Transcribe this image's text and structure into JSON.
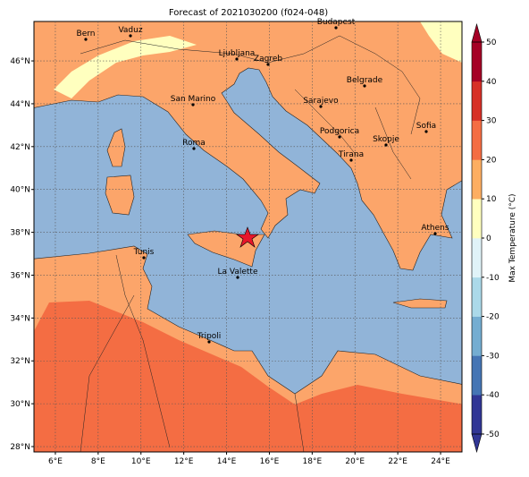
{
  "title": "Forecast of 2021030200 (f024-048)",
  "cities": [
    "Bern",
    "Vaduz",
    "Budapest",
    "Ljubljana",
    "Zagreb",
    "Belgrade",
    "Sarajevo",
    "San Marino",
    "Sofia",
    "Roma",
    "Podgorica",
    "Skopje",
    "Tirana",
    "Athens",
    "Tunis",
    "La Valette",
    "Tripoli"
  ],
  "lon_lim": [
    5,
    25
  ],
  "lat_lim": [
    27.75,
    47.84
  ],
  "lon_ticks": [
    {
      "value": 6,
      "label": "6°E"
    },
    {
      "value": 8,
      "label": "8°E"
    },
    {
      "value": 10,
      "label": "10°E"
    },
    {
      "value": 12,
      "label": "12°E"
    },
    {
      "value": 14,
      "label": "14°E"
    },
    {
      "value": 16,
      "label": "16°E"
    },
    {
      "value": 18,
      "label": "18°E"
    },
    {
      "value": 20,
      "label": "20°E"
    },
    {
      "value": 22,
      "label": "22°E"
    },
    {
      "value": 24,
      "label": "24°E"
    }
  ],
  "lat_ticks": [
    {
      "value": 28,
      "label": "28°N"
    },
    {
      "value": 30,
      "label": "30°N"
    },
    {
      "value": 32,
      "label": "32°N"
    },
    {
      "value": 34,
      "label": "34°N"
    },
    {
      "value": 36,
      "label": "36°N"
    },
    {
      "value": 38,
      "label": "38°N"
    },
    {
      "value": 40,
      "label": "40°N"
    },
    {
      "value": 42,
      "label": "42°N"
    },
    {
      "value": 44,
      "label": "44°N"
    },
    {
      "value": 46,
      "label": "46°N"
    }
  ],
  "grid": true,
  "colorbar": {
    "label": "Max Temperature (°C)",
    "lim": [
      -50,
      50
    ],
    "ticks": [
      -50,
      -40,
      -30,
      -20,
      -10,
      0,
      10,
      20,
      30,
      40,
      50
    ],
    "colors": [
      "#313695",
      "#4575b4",
      "#74add1",
      "#abd9e9",
      "#e0f3f8",
      "#ffffbf",
      "#fdae61",
      "#f46d43",
      "#d73027",
      "#a50026"
    ]
  }
}
